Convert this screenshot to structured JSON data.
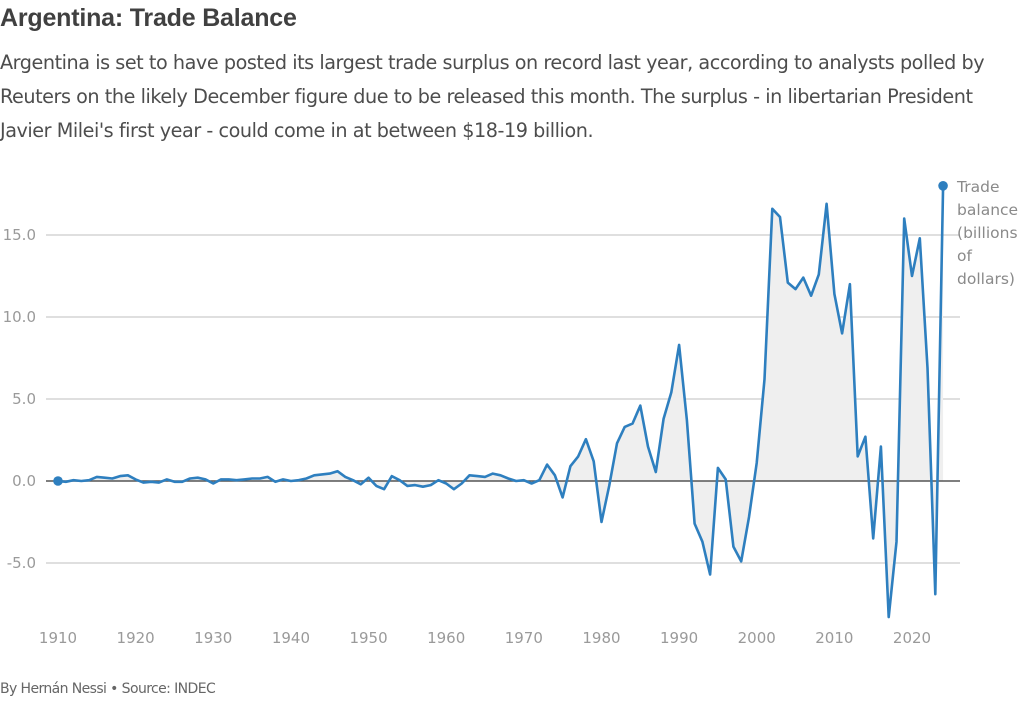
{
  "header": {
    "title": "Argentina: Trade Balance",
    "subtitle": "Argentina is set to have posted its largest trade surplus on record last year, according to analysts polled by Reuters on the likely December figure due to be released this month. The surplus - in libertarian President Javier Milei's first year - could come in at between $18-19 billion."
  },
  "footer": {
    "byline": "By Hernán Nessi • Source: INDEC"
  },
  "colors": {
    "line": "#2e7fbf",
    "area": "#efefef",
    "grid": "#cccccc",
    "zero_line": "#555555",
    "text": "#404040"
  },
  "chart_data": {
    "type": "area",
    "title": "Argentina: Trade Balance",
    "xlabel": "",
    "ylabel": "Trade balance (billions of dollars)",
    "series_label_lines": [
      "Trade",
      "balance",
      "(billions",
      "of",
      "dollars)"
    ],
    "xlim": [
      1910,
      2024
    ],
    "ylim": [
      -8.5,
      18
    ],
    "x_ticks": [
      1910,
      1920,
      1930,
      1940,
      1950,
      1960,
      1970,
      1980,
      1990,
      2000,
      2010,
      2020
    ],
    "y_ticks": [
      {
        "value": 15,
        "label": "15.0"
      },
      {
        "value": 10,
        "label": "10.0"
      },
      {
        "value": 5,
        "label": "5.0"
      },
      {
        "value": 0,
        "label": "0.0"
      },
      {
        "value": -5,
        "label": "-5.0"
      }
    ],
    "grid": true,
    "legend": "top-right",
    "series": [
      {
        "name": "Trade balance",
        "x": [
          1910,
          1911,
          1912,
          1913,
          1914,
          1915,
          1916,
          1917,
          1918,
          1919,
          1920,
          1921,
          1922,
          1923,
          1924,
          1925,
          1926,
          1927,
          1928,
          1929,
          1930,
          1931,
          1932,
          1933,
          1934,
          1935,
          1936,
          1937,
          1938,
          1939,
          1940,
          1941,
          1942,
          1943,
          1944,
          1945,
          1946,
          1947,
          1948,
          1949,
          1950,
          1951,
          1952,
          1953,
          1954,
          1955,
          1956,
          1957,
          1958,
          1959,
          1960,
          1961,
          1962,
          1963,
          1964,
          1965,
          1966,
          1967,
          1968,
          1969,
          1970,
          1971,
          1972,
          1973,
          1974,
          1975,
          1976,
          1977,
          1978,
          1979,
          1980,
          1981,
          1982,
          1983,
          1984,
          1985,
          1986,
          1987,
          1988,
          1989,
          1990,
          1991,
          1992,
          1993,
          1994,
          1995,
          1996,
          1997,
          1998,
          1999,
          2000,
          2001,
          2002,
          2003,
          2004,
          2005,
          2006,
          2007,
          2008,
          2009,
          2010,
          2011,
          2012,
          2013,
          2014,
          2015,
          2016,
          2017,
          2018,
          2019,
          2020,
          2021,
          2022,
          2023,
          2024
        ],
        "values": [
          0.0,
          -0.05,
          0.05,
          0.0,
          0.05,
          0.25,
          0.2,
          0.15,
          0.3,
          0.35,
          0.1,
          -0.1,
          -0.05,
          -0.1,
          0.1,
          -0.05,
          -0.05,
          0.15,
          0.2,
          0.1,
          -0.15,
          0.1,
          0.1,
          0.05,
          0.1,
          0.15,
          0.15,
          0.25,
          -0.05,
          0.1,
          0.0,
          0.05,
          0.15,
          0.35,
          0.4,
          0.45,
          0.6,
          0.25,
          0.05,
          -0.2,
          0.2,
          -0.3,
          -0.5,
          0.3,
          0.05,
          -0.3,
          -0.25,
          -0.35,
          -0.25,
          0.05,
          -0.15,
          -0.5,
          -0.15,
          0.35,
          0.3,
          0.25,
          0.45,
          0.35,
          0.15,
          0.0,
          0.05,
          -0.15,
          0.05,
          1.0,
          0.35,
          -1.0,
          0.9,
          1.5,
          2.55,
          1.2,
          -2.5,
          -0.3,
          2.3,
          3.3,
          3.5,
          4.6,
          2.1,
          0.55,
          3.8,
          5.4,
          8.3,
          3.7,
          -2.6,
          -3.7,
          -5.7,
          0.8,
          0.1,
          -4.0,
          -4.9,
          -2.2,
          1.1,
          6.2,
          16.6,
          16.1,
          12.1,
          11.7,
          12.4,
          11.3,
          12.6,
          16.9,
          11.4,
          9.0,
          12.0,
          1.5,
          2.7,
          -3.5,
          2.1,
          -8.3,
          -3.7,
          16.0,
          12.5,
          14.8,
          6.9,
          -6.9,
          18.0
        ]
      }
    ]
  }
}
